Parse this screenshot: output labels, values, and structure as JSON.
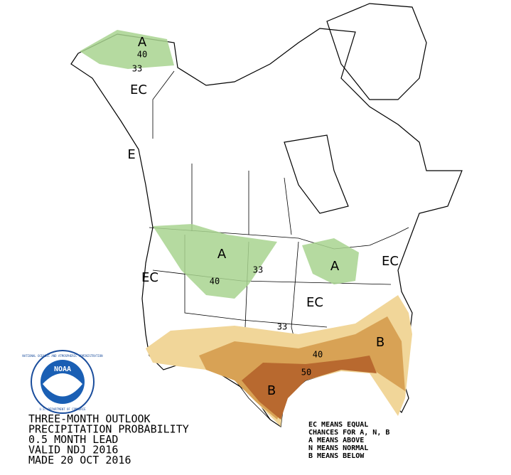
{
  "map": {
    "labels": [
      "A",
      "40",
      "33",
      "EC",
      "E",
      "A",
      "40",
      "33",
      "A",
      "EC",
      "EC",
      "EC",
      "33",
      "40",
      "50",
      "B",
      "B"
    ]
  },
  "logo": {
    "name": "NOAA",
    "ring_top": "NATIONAL OCEANIC AND ATMOSPHERIC ADMINISTRATION",
    "ring_bottom": "U.S. DEPARTMENT OF COMMERCE"
  },
  "footer": {
    "lines": [
      "THREE-MONTH OUTLOOK",
      "PRECIPITATION PROBABILITY",
      "0.5 MONTH LEAD",
      "VALID NDJ 2016",
      "MADE 20 OCT 2016"
    ]
  },
  "key": {
    "lines": [
      "EC MEANS EQUAL",
      "CHANCES FOR A, N, B",
      "A MEANS ABOVE",
      "N MEANS NORMAL",
      "B MEANS BELOW"
    ]
  }
}
